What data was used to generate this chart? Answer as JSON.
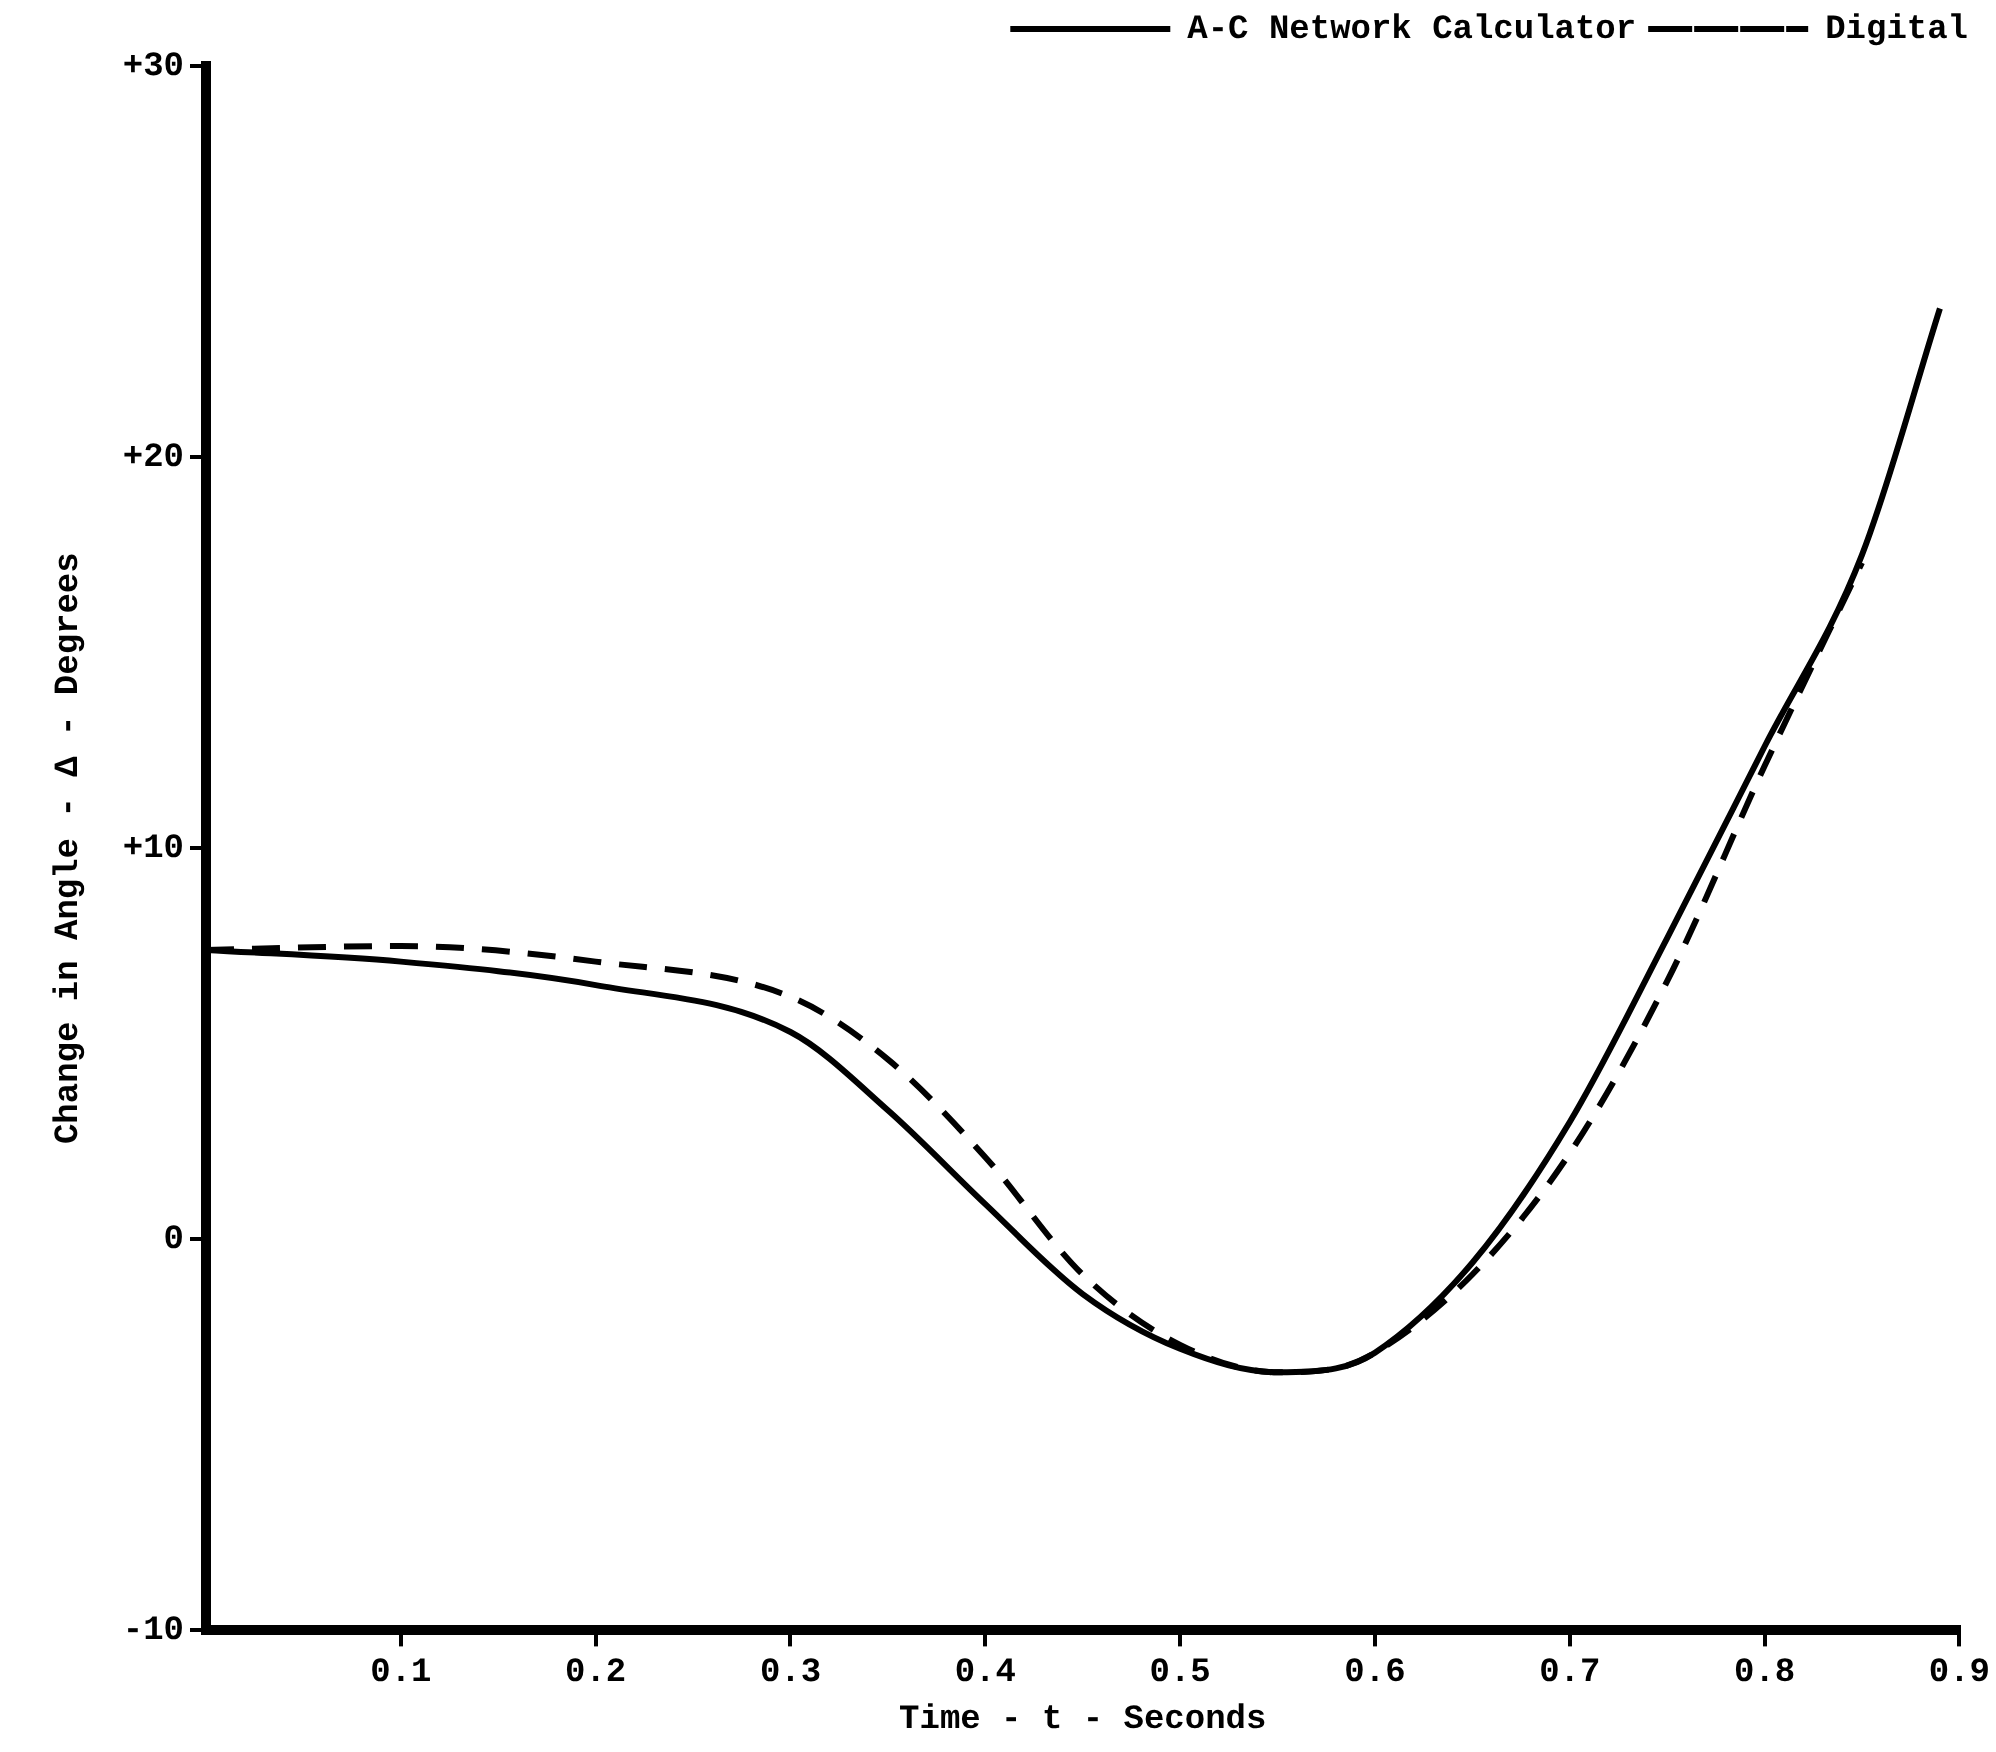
{
  "chart_data": {
    "type": "line",
    "xlabel": "Time - t - Seconds",
    "ylabel": "Change in Angle - Δ - Degrees",
    "xlim": [
      0,
      0.9
    ],
    "xticks": [
      0.1,
      0.2,
      0.3,
      0.4,
      0.5,
      0.6,
      0.7,
      0.8,
      0.9
    ],
    "ylim": [
      -10,
      30
    ],
    "yticks": [
      {
        "value": -10,
        "label": "-10"
      },
      {
        "value": 0,
        "label": "0"
      },
      {
        "value": 10,
        "label": "+10"
      },
      {
        "value": 20,
        "label": "+20"
      },
      {
        "value": 30,
        "label": "+30"
      }
    ],
    "grid": false,
    "legend": "top right",
    "marker": "none",
    "series": [
      {
        "name": "A-C Network Calculator",
        "color": "#000000",
        "line_style": "solid",
        "x": [
          0,
          0.1,
          0.2,
          0.3,
          0.35,
          0.4,
          0.45,
          0.5,
          0.55,
          0.58,
          0.6,
          0.65,
          0.7,
          0.75,
          0.8,
          0.85,
          0.89
        ],
        "values": [
          7.4,
          7.1,
          6.5,
          5.3,
          3.3,
          0.9,
          -1.4,
          -2.8,
          -3.4,
          -3.3,
          -2.9,
          -0.6,
          3.0,
          7.7,
          12.6,
          17.5,
          23.8
        ]
      },
      {
        "name": "Digital",
        "color": "#000000",
        "line_style": "dashed",
        "x": [
          0,
          0.1,
          0.2,
          0.3,
          0.35,
          0.4,
          0.45,
          0.5,
          0.55,
          0.58,
          0.6,
          0.65,
          0.7,
          0.75,
          0.8,
          0.85
        ],
        "values": [
          7.4,
          7.5,
          7.1,
          6.2,
          4.6,
          2.1,
          -0.9,
          -2.7,
          -3.4,
          -3.3,
          -2.9,
          -0.9,
          2.2,
          6.6,
          12.1,
          17.3
        ]
      }
    ]
  }
}
